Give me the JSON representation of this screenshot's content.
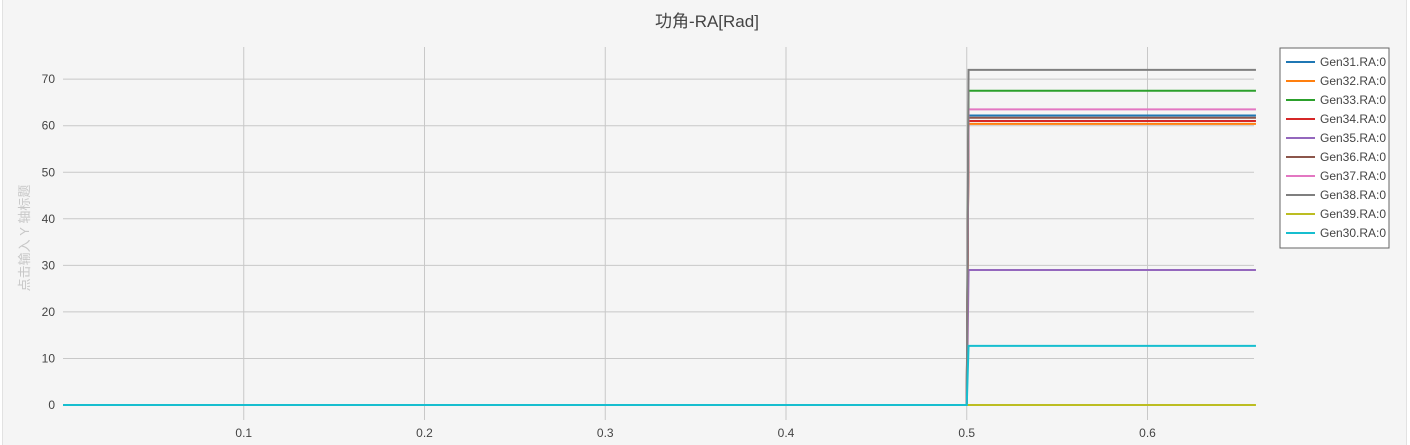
{
  "chart_data": {
    "type": "line",
    "title": "功角-RA[Rad]",
    "ylabel": "点击输入 Y 轴标题",
    "xlabel": "",
    "xlim": [
      0,
      0.66
    ],
    "ylim": [
      -2,
      77
    ],
    "x_ticks": [
      "0.1",
      "0.2",
      "0.3",
      "0.4",
      "0.5",
      "0.6"
    ],
    "y_ticks": [
      "0",
      "10",
      "20",
      "30",
      "40",
      "50",
      "60",
      "70"
    ],
    "grid": true,
    "legend_position": "top-right",
    "step_x": [
      0.5,
      0.501,
      0.66
    ],
    "series": [
      {
        "name": "Gen31.RA:0",
        "color": "#1f77b4",
        "values": [
          0,
          62.2,
          62.2
        ]
      },
      {
        "name": "Gen32.RA:0",
        "color": "#ff7f0e",
        "values": [
          0,
          60.4,
          60.4
        ]
      },
      {
        "name": "Gen33.RA:0",
        "color": "#2ca02c",
        "values": [
          0,
          67.5,
          67.5
        ]
      },
      {
        "name": "Gen34.RA:0",
        "color": "#d62728",
        "values": [
          0,
          61.0,
          61.0
        ]
      },
      {
        "name": "Gen35.RA:0",
        "color": "#9467bd",
        "values": [
          0,
          29.0,
          29.0
        ]
      },
      {
        "name": "Gen36.RA:0",
        "color": "#8c564b",
        "values": [
          0,
          61.7,
          61.7
        ]
      },
      {
        "name": "Gen37.RA:0",
        "color": "#e377c2",
        "values": [
          0,
          63.5,
          63.5
        ]
      },
      {
        "name": "Gen38.RA:0",
        "color": "#7f7f7f",
        "values": [
          0,
          72.0,
          72.0
        ]
      },
      {
        "name": "Gen39.RA:0",
        "color": "#bcbd22",
        "values": [
          0,
          0,
          0
        ]
      },
      {
        "name": "Gen30.RA:0",
        "color": "#17becf",
        "values": [
          0,
          12.7,
          12.7
        ]
      }
    ]
  }
}
